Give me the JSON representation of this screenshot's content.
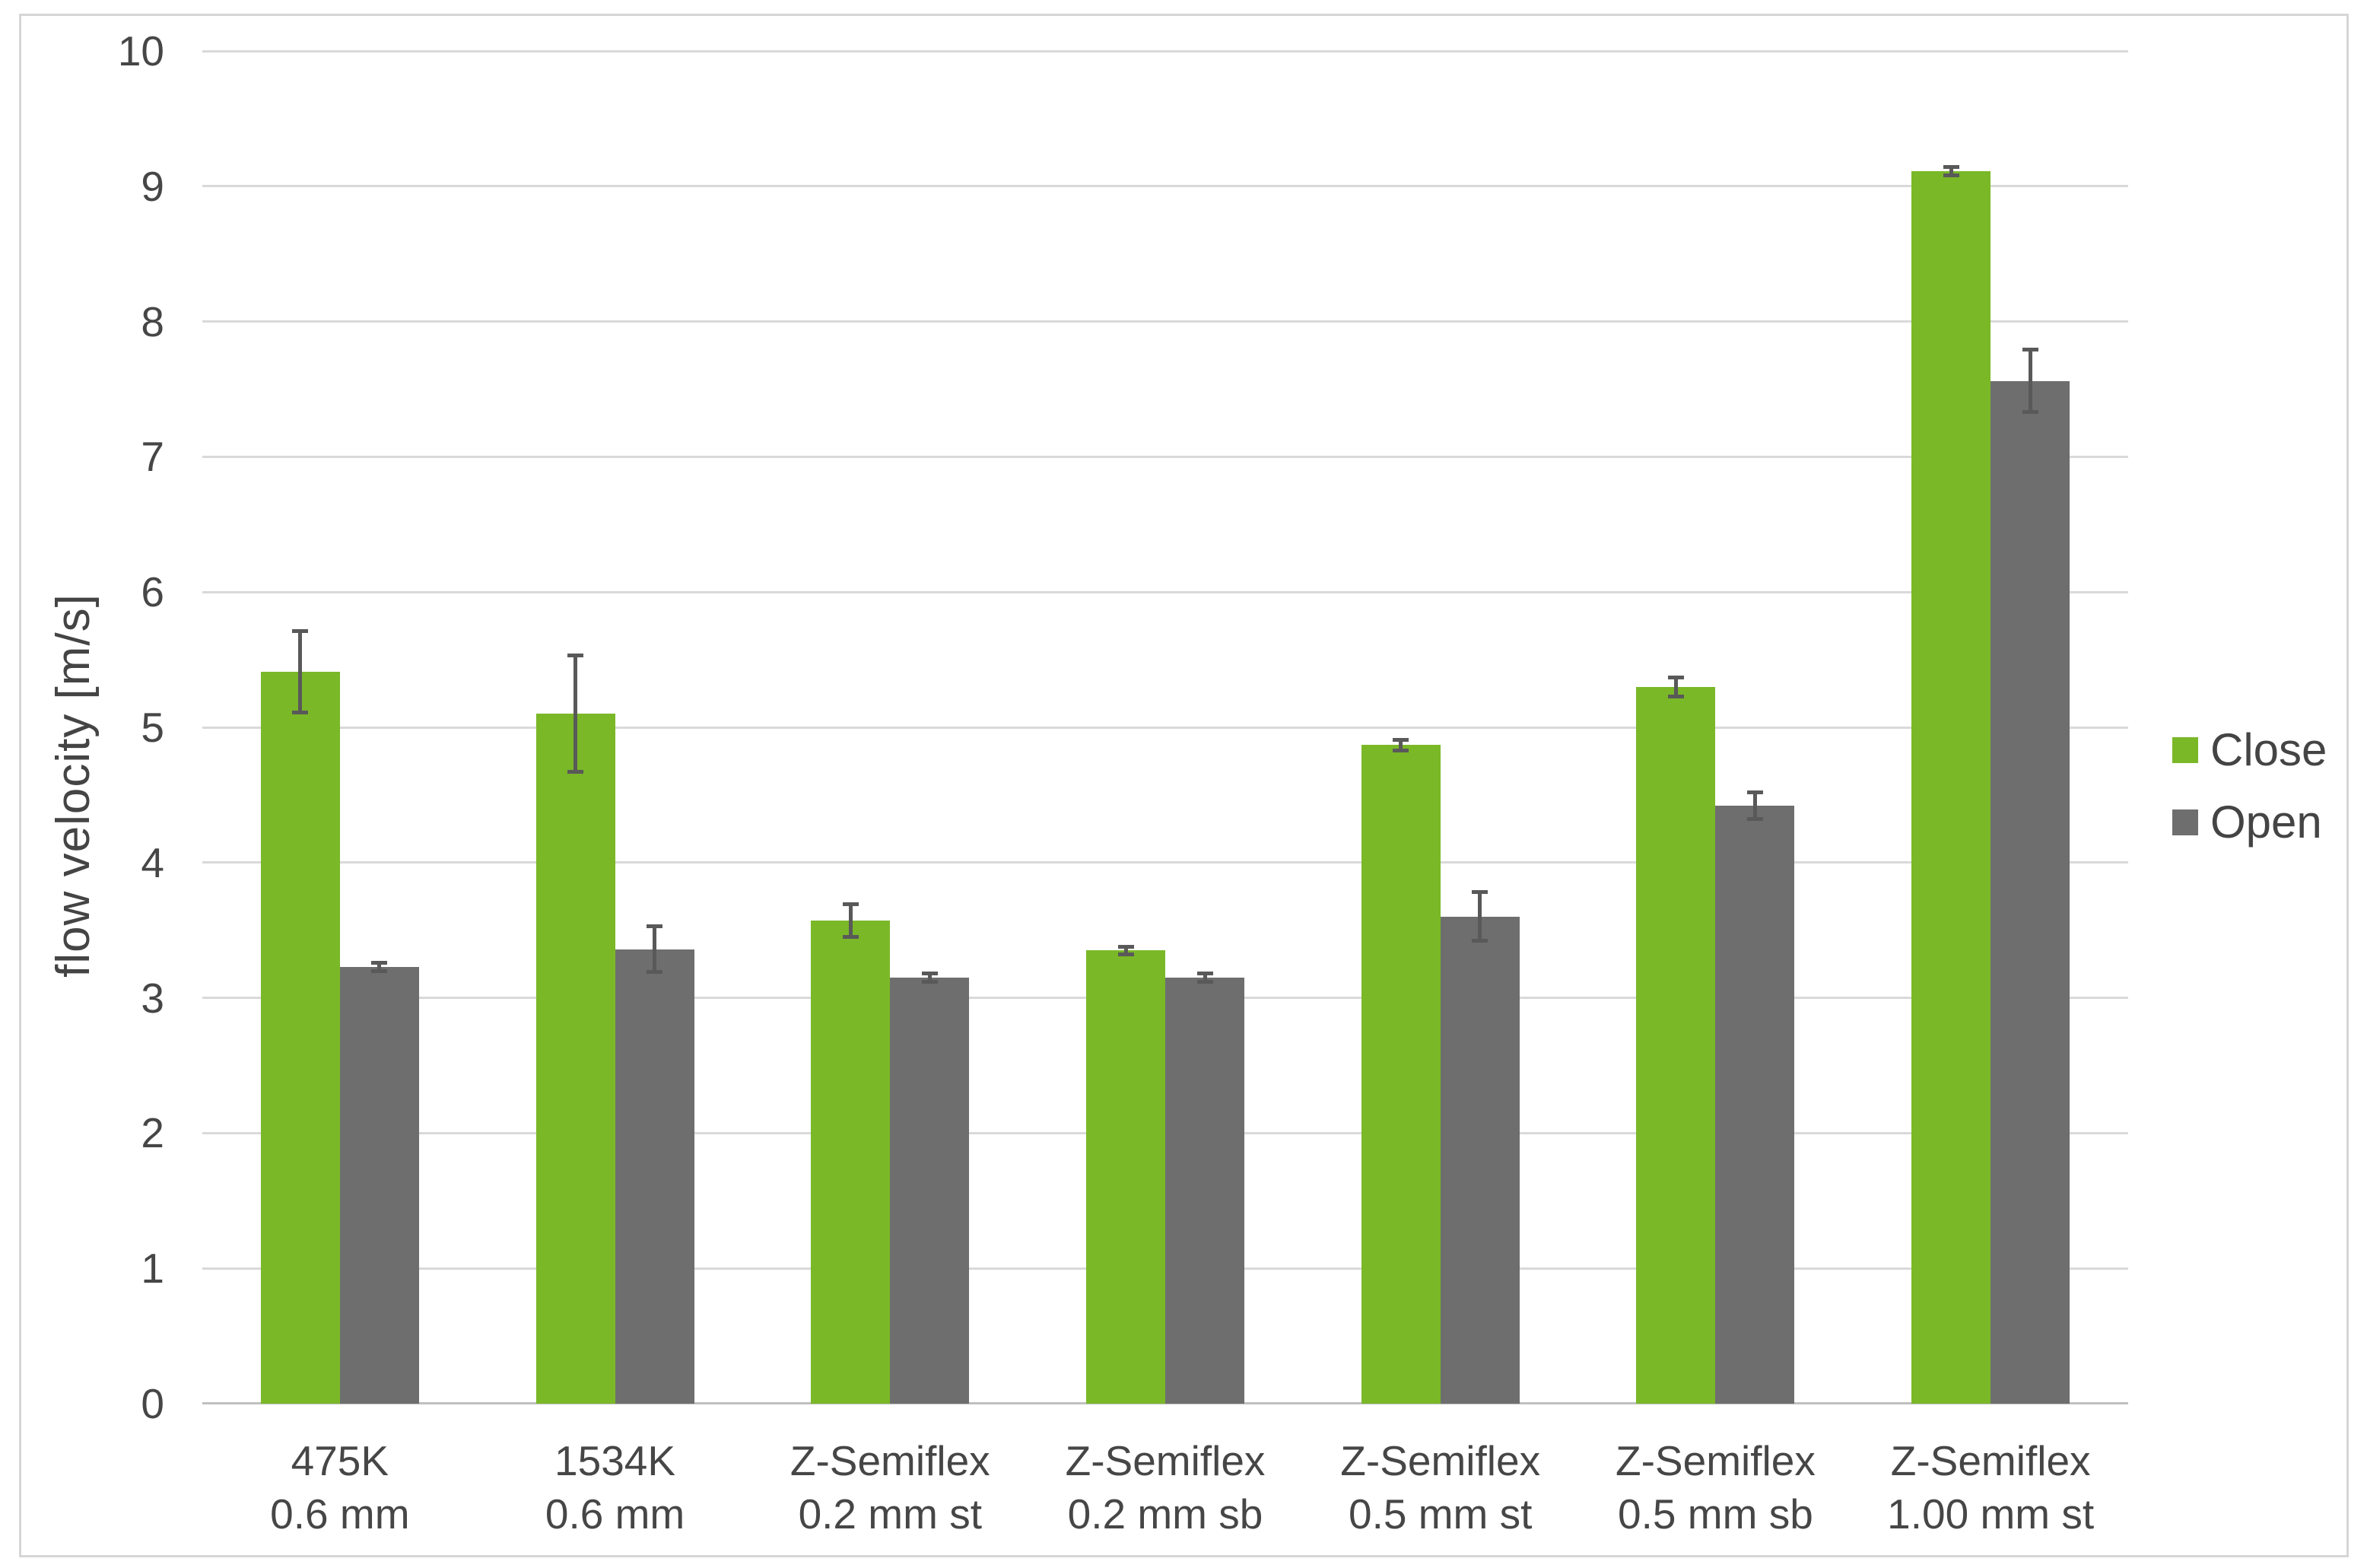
{
  "figure": {
    "background_color": "#FFFFFF",
    "frame_border_color": "#D6D6D6"
  },
  "chart_data": {
    "type": "bar",
    "title": "",
    "xlabel": "",
    "ylabel": "flow velocity [m/s]",
    "ylim": [
      0,
      10
    ],
    "yticks": [
      0,
      1,
      2,
      3,
      4,
      5,
      6,
      7,
      8,
      9,
      10
    ],
    "grid": "horizontal",
    "gridline_color": "#D9D9D9",
    "axis_line_color": "#C0C0C0",
    "text_color": "#464646",
    "error_bar_color": "#595959",
    "legend_position": "right-middle",
    "categories": [
      "475K\n0.6 mm",
      "1534K\n0.6 mm",
      "Z-Semiflex\n0.2 mm st",
      "Z-Semiflex\n0.2 mm sb",
      "Z-Semiflex\n0.5 mm st",
      "Z-Semiflex\n0.5 mm sb",
      "Z-Semiflex\n1.00 mm st"
    ],
    "series": [
      {
        "name": "Close",
        "color": "#7AB828",
        "values": [
          5.41,
          5.1,
          3.57,
          3.35,
          4.87,
          5.3,
          9.11
        ],
        "error_bars": [
          0.3,
          0.43,
          0.12,
          0.03,
          0.04,
          0.07,
          0.03
        ]
      },
      {
        "name": "Open",
        "color": "#6E6E6E",
        "values": [
          3.23,
          3.36,
          3.15,
          3.15,
          3.6,
          4.42,
          7.56
        ],
        "error_bars": [
          0.03,
          0.17,
          0.03,
          0.03,
          0.18,
          0.1,
          0.23
        ]
      }
    ]
  }
}
